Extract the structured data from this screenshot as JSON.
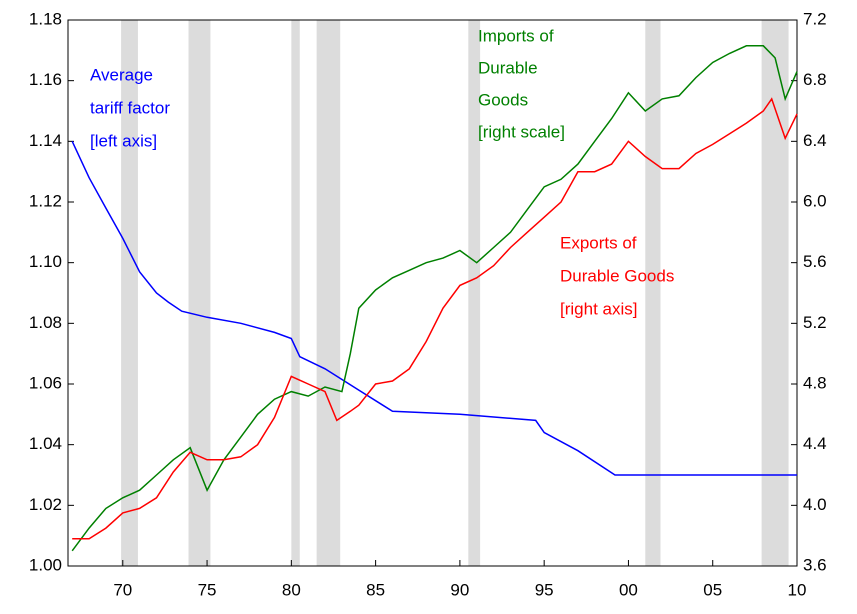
{
  "chart_data": {
    "type": "line",
    "xlim": [
      1966.75,
      2010
    ],
    "xticks": [
      {
        "value": 1970,
        "label": "70"
      },
      {
        "value": 1975,
        "label": "75"
      },
      {
        "value": 1980,
        "label": "80"
      },
      {
        "value": 1985,
        "label": "85"
      },
      {
        "value": 1990,
        "label": "90"
      },
      {
        "value": 1995,
        "label": "95"
      },
      {
        "value": 2000,
        "label": "00"
      },
      {
        "value": 2005,
        "label": "05"
      },
      {
        "value": 2010,
        "label": "10"
      }
    ],
    "ylim": [
      1.0,
      1.18
    ],
    "yticks": [
      {
        "value": 1.0,
        "label": "1.00"
      },
      {
        "value": 1.02,
        "label": "1.02"
      },
      {
        "value": 1.04,
        "label": "1.04"
      },
      {
        "value": 1.06,
        "label": "1.06"
      },
      {
        "value": 1.08,
        "label": "1.08"
      },
      {
        "value": 1.1,
        "label": "1.10"
      },
      {
        "value": 1.12,
        "label": "1.12"
      },
      {
        "value": 1.14,
        "label": "1.14"
      },
      {
        "value": 1.16,
        "label": "1.16"
      },
      {
        "value": 1.18,
        "label": "1.18"
      }
    ],
    "y2lim": [
      3.6,
      7.2
    ],
    "y2ticks": [
      3.6,
      {
        "value": 4.0,
        "label": "4.0"
      },
      4.4,
      4.8,
      5.2,
      {
        "value": 5.6,
        "label": "5.6"
      },
      {
        "value": 6.0,
        "label": "6.0"
      },
      6.4,
      6.8,
      7.2
    ],
    "recessions": [
      [
        1969.9,
        1970.9
      ],
      [
        1973.9,
        1975.2
      ],
      [
        1980.0,
        1980.5
      ],
      [
        1981.5,
        1982.9
      ],
      [
        1990.5,
        1991.2
      ],
      [
        2001.0,
        2001.9
      ],
      [
        2007.9,
        2009.5
      ]
    ],
    "recession_color": "#dcdcdc",
    "series": [
      {
        "name": "Average tariff factor",
        "color": "#0000ff",
        "axis": "y",
        "x": [
          1967,
          1968,
          1969,
          1970,
          1971,
          1972,
          1972.7,
          1973.5,
          1975,
          1977,
          1979,
          1980,
          1980.5,
          1982,
          1984,
          1986,
          1990,
          1994.5,
          1995,
          1997,
          1999.2,
          2010
        ],
        "values": [
          1.14,
          1.128,
          1.118,
          1.108,
          1.097,
          1.09,
          1.087,
          1.084,
          1.082,
          1.08,
          1.077,
          1.075,
          1.069,
          1.065,
          1.058,
          1.051,
          1.05,
          1.048,
          1.044,
          1.038,
          1.03,
          1.03
        ]
      },
      {
        "name": "Imports of Durable Goods",
        "color": "#008000",
        "axis": "y2",
        "x": [
          1967,
          1968,
          1969,
          1970,
          1971,
          1972,
          1973,
          1974,
          1975,
          1976,
          1977,
          1978,
          1979,
          1980,
          1981,
          1982,
          1983,
          1983.5,
          1984,
          1985,
          1986,
          1987,
          1988,
          1989,
          1990,
          1991,
          1992,
          1993,
          1994,
          1995,
          1996,
          1997,
          1998,
          1999,
          2000,
          2001,
          2002,
          2003,
          2004,
          2005,
          2006,
          2007,
          2008,
          2008.7,
          2009.3,
          2010
        ],
        "values": [
          3.7,
          3.85,
          3.98,
          4.05,
          4.1,
          4.2,
          4.3,
          4.38,
          4.1,
          4.3,
          4.45,
          4.6,
          4.7,
          4.75,
          4.72,
          4.78,
          4.75,
          5.0,
          5.3,
          5.42,
          5.5,
          5.55,
          5.6,
          5.63,
          5.68,
          5.6,
          5.7,
          5.8,
          5.95,
          6.1,
          6.15,
          6.25,
          6.4,
          6.55,
          6.72,
          6.6,
          6.68,
          6.7,
          6.82,
          6.92,
          6.98,
          7.03,
          7.03,
          6.95,
          6.68,
          6.86
        ]
      },
      {
        "name": "Exports of Durable Goods",
        "color": "#ff0000",
        "axis": "y2",
        "x": [
          1967,
          1968,
          1969,
          1970,
          1971,
          1972,
          1973,
          1974,
          1975,
          1976,
          1977,
          1978,
          1979,
          1980,
          1981,
          1982,
          1982.7,
          1983.5,
          1984,
          1985,
          1986,
          1987,
          1988,
          1989,
          1990,
          1991,
          1992,
          1993,
          1994,
          1995,
          1996,
          1997,
          1998,
          1999,
          2000,
          2001,
          2002,
          2003,
          2004,
          2005,
          2006,
          2007,
          2008,
          2008.5,
          2009.3,
          2010
        ],
        "values": [
          3.78,
          3.78,
          3.85,
          3.95,
          3.98,
          4.05,
          4.22,
          4.35,
          4.3,
          4.3,
          4.32,
          4.4,
          4.58,
          4.85,
          4.8,
          4.75,
          4.56,
          4.62,
          4.66,
          4.8,
          4.82,
          4.9,
          5.08,
          5.3,
          5.45,
          5.5,
          5.58,
          5.7,
          5.8,
          5.9,
          6.0,
          6.2,
          6.2,
          6.25,
          6.4,
          6.3,
          6.22,
          6.22,
          6.32,
          6.38,
          6.45,
          6.52,
          6.6,
          6.68,
          6.42,
          6.58
        ]
      }
    ],
    "annotations": [
      {
        "lines": [
          "Average",
          "tariff factor",
          "[left axis]"
        ],
        "color": "#0000ff"
      },
      {
        "lines": [
          "Imports of",
          "Durable",
          "Goods",
          "[right scale]"
        ],
        "color": "#008000"
      },
      {
        "lines": [
          "Exports of",
          "Durable Goods",
          "[right axis]"
        ],
        "color": "#ff0000"
      }
    ]
  }
}
